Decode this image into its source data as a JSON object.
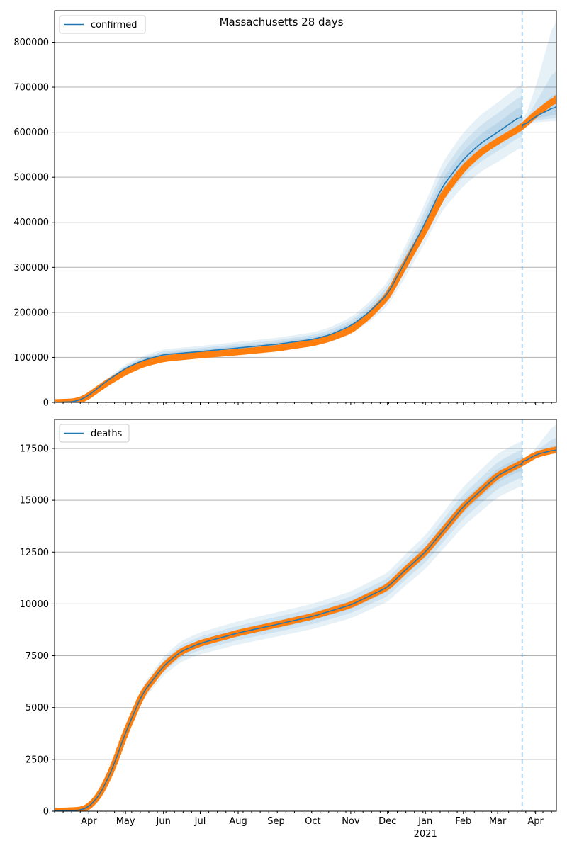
{
  "chart_data": [
    {
      "type": "line",
      "title": "Massachusetts 28 days",
      "legend": {
        "label": "confirmed",
        "placement": "top-left"
      },
      "ylim": [
        0,
        870000
      ],
      "yticks": [
        0,
        100000,
        200000,
        300000,
        400000,
        500000,
        600000,
        700000,
        800000
      ],
      "ytick_labels": [
        "0",
        "100000",
        "200000",
        "300000",
        "400000",
        "500000",
        "600000",
        "700000",
        "800000"
      ],
      "grid": "y",
      "forecast_start": "2021-03-21",
      "observed": [
        [
          "2020-03-04",
          0
        ],
        [
          "2020-03-20",
          1500
        ],
        [
          "2020-03-28",
          8000
        ],
        [
          "2020-04-01",
          15000
        ],
        [
          "2020-04-15",
          42000
        ],
        [
          "2020-05-01",
          68000
        ],
        [
          "2020-05-15",
          85000
        ],
        [
          "2020-06-01",
          97000
        ],
        [
          "2020-07-01",
          105000
        ],
        [
          "2020-08-01",
          112000
        ],
        [
          "2020-09-01",
          120000
        ],
        [
          "2020-10-01",
          132000
        ],
        [
          "2020-10-15",
          142000
        ],
        [
          "2020-11-01",
          160000
        ],
        [
          "2020-11-15",
          190000
        ],
        [
          "2020-12-01",
          235000
        ],
        [
          "2020-12-15",
          305000
        ],
        [
          "2021-01-01",
          385000
        ],
        [
          "2021-01-15",
          460000
        ],
        [
          "2021-02-01",
          520000
        ],
        [
          "2021-02-15",
          555000
        ],
        [
          "2021-03-01",
          580000
        ],
        [
          "2021-03-21",
          612000
        ],
        [
          "2021-04-01",
          640000
        ],
        [
          "2021-04-18",
          675000
        ]
      ],
      "model": [
        [
          "2020-03-04",
          0
        ],
        [
          "2020-03-20",
          1500
        ],
        [
          "2020-03-28",
          9000
        ],
        [
          "2020-04-01",
          16000
        ],
        [
          "2020-04-15",
          46000
        ],
        [
          "2020-05-01",
          76000
        ],
        [
          "2020-05-15",
          93000
        ],
        [
          "2020-06-01",
          106000
        ],
        [
          "2020-07-01",
          113000
        ],
        [
          "2020-08-01",
          121000
        ],
        [
          "2020-09-01",
          129000
        ],
        [
          "2020-10-01",
          140000
        ],
        [
          "2020-10-15",
          150000
        ],
        [
          "2020-11-01",
          170000
        ],
        [
          "2020-11-15",
          198000
        ],
        [
          "2020-12-01",
          240000
        ],
        [
          "2020-12-15",
          310000
        ],
        [
          "2021-01-01",
          400000
        ],
        [
          "2021-01-15",
          480000
        ],
        [
          "2021-02-01",
          540000
        ],
        [
          "2021-02-15",
          575000
        ],
        [
          "2021-03-01",
          600000
        ],
        [
          "2021-03-21",
          638000
        ]
      ],
      "forecast_model": [
        [
          "2021-03-21",
          612000
        ],
        [
          "2021-04-01",
          635000
        ],
        [
          "2021-04-18",
          658000
        ]
      ],
      "band_rel": [
        0.035,
        0.07,
        0.11
      ],
      "forecast_bands": [
        {
          "lower": [
            [
              "2021-03-21",
              610000
            ],
            [
              "2021-04-01",
              622000
            ],
            [
              "2021-04-18",
              625000
            ]
          ],
          "upper": [
            [
              "2021-03-21",
              614000
            ],
            [
              "2021-04-01",
              700000
            ],
            [
              "2021-04-18",
              865000
            ]
          ]
        },
        {
          "lower": [
            [
              "2021-03-21",
              611000
            ],
            [
              "2021-04-01",
              626000
            ],
            [
              "2021-04-18",
              632000
            ]
          ],
          "upper": [
            [
              "2021-03-21",
              613000
            ],
            [
              "2021-04-01",
              665000
            ],
            [
              "2021-04-18",
              745000
            ]
          ]
        },
        {
          "lower": [
            [
              "2021-03-21",
              611500
            ],
            [
              "2021-04-01",
              630000
            ],
            [
              "2021-04-18",
              640000
            ]
          ],
          "upper": [
            [
              "2021-03-21",
              612500
            ],
            [
              "2021-04-01",
              648000
            ],
            [
              "2021-04-18",
              690000
            ]
          ]
        }
      ]
    },
    {
      "type": "line",
      "legend": {
        "label": "deaths",
        "placement": "top-left"
      },
      "ylim": [
        0,
        18900
      ],
      "yticks": [
        0,
        2500,
        5000,
        7500,
        10000,
        12500,
        15000,
        17500
      ],
      "ytick_labels": [
        "0",
        "2500",
        "5000",
        "7500",
        "10000",
        "12500",
        "15000",
        "17500"
      ],
      "grid": "y",
      "forecast_start": "2021-03-21",
      "observed": [
        [
          "2020-03-04",
          0
        ],
        [
          "2020-03-25",
          50
        ],
        [
          "2020-04-01",
          200
        ],
        [
          "2020-04-10",
          800
        ],
        [
          "2020-04-20",
          2000
        ],
        [
          "2020-05-01",
          3800
        ],
        [
          "2020-05-15",
          5700
        ],
        [
          "2020-06-01",
          7000
        ],
        [
          "2020-06-15",
          7700
        ],
        [
          "2020-07-01",
          8100
        ],
        [
          "2020-08-01",
          8600
        ],
        [
          "2020-09-01",
          9000
        ],
        [
          "2020-10-01",
          9400
        ],
        [
          "2020-11-01",
          9950
        ],
        [
          "2020-12-01",
          10800
        ],
        [
          "2020-12-15",
          11600
        ],
        [
          "2021-01-01",
          12500
        ],
        [
          "2021-02-01",
          14700
        ],
        [
          "2021-03-01",
          16200
        ],
        [
          "2021-03-21",
          16800
        ],
        [
          "2021-04-01",
          17200
        ],
        [
          "2021-04-18",
          17450
        ]
      ],
      "model": [
        [
          "2020-03-04",
          0
        ],
        [
          "2020-03-25",
          50
        ],
        [
          "2020-04-01",
          200
        ],
        [
          "2020-04-10",
          800
        ],
        [
          "2020-04-20",
          2000
        ],
        [
          "2020-05-01",
          3800
        ],
        [
          "2020-05-15",
          5700
        ],
        [
          "2020-06-01",
          7000
        ],
        [
          "2020-06-15",
          7700
        ],
        [
          "2020-07-01",
          8100
        ],
        [
          "2020-08-01",
          8600
        ],
        [
          "2020-09-01",
          9000
        ],
        [
          "2020-10-01",
          9400
        ],
        [
          "2020-11-01",
          9950
        ],
        [
          "2020-12-01",
          10800
        ],
        [
          "2020-12-15",
          11600
        ],
        [
          "2021-01-01",
          12500
        ],
        [
          "2021-02-01",
          14700
        ],
        [
          "2021-03-01",
          16200
        ],
        [
          "2021-03-21",
          16800
        ]
      ],
      "forecast_model": [
        [
          "2021-03-21",
          16800
        ],
        [
          "2021-04-01",
          17200
        ],
        [
          "2021-04-18",
          17450
        ]
      ],
      "band_rel": [
        0.02,
        0.04,
        0.065
      ],
      "forecast_bands": [
        {
          "lower": [
            [
              "2021-03-21",
              16790
            ],
            [
              "2021-04-01",
              17150
            ],
            [
              "2021-04-18",
              17300
            ]
          ],
          "upper": [
            [
              "2021-03-21",
              16810
            ],
            [
              "2021-04-01",
              17500
            ],
            [
              "2021-04-18",
              18800
            ]
          ]
        },
        {
          "lower": [
            [
              "2021-03-21",
              16795
            ],
            [
              "2021-04-01",
              17170
            ],
            [
              "2021-04-18",
              17350
            ]
          ],
          "upper": [
            [
              "2021-03-21",
              16805
            ],
            [
              "2021-04-01",
              17350
            ],
            [
              "2021-04-18",
              18100
            ]
          ]
        },
        {
          "lower": [
            [
              "2021-03-21",
              16798
            ],
            [
              "2021-04-01",
              17190
            ],
            [
              "2021-04-18",
              17400
            ]
          ],
          "upper": [
            [
              "2021-03-21",
              16802
            ],
            [
              "2021-04-01",
              17260
            ],
            [
              "2021-04-18",
              17700
            ]
          ]
        }
      ]
    }
  ],
  "xaxis": {
    "xlim": [
      "2020-03-04",
      "2021-04-18"
    ],
    "month_ticks": [
      [
        "2020-04-01",
        "Apr"
      ],
      [
        "2020-05-01",
        "May"
      ],
      [
        "2020-06-01",
        "Jun"
      ],
      [
        "2020-07-01",
        "Jul"
      ],
      [
        "2020-08-01",
        "Aug"
      ],
      [
        "2020-09-01",
        "Sep"
      ],
      [
        "2020-10-01",
        "Oct"
      ],
      [
        "2020-11-01",
        "Nov"
      ],
      [
        "2020-12-01",
        "Dec"
      ],
      [
        "2021-01-01",
        "Jan"
      ],
      [
        "2021-02-01",
        "Feb"
      ],
      [
        "2021-03-01",
        "Mar"
      ],
      [
        "2021-04-01",
        "Apr"
      ]
    ],
    "year_label": "2021"
  },
  "colors": {
    "model": "#1f77b4",
    "observed": "#ff7f0e",
    "band": "#1f77b4",
    "grid": "#b0b0b0"
  }
}
